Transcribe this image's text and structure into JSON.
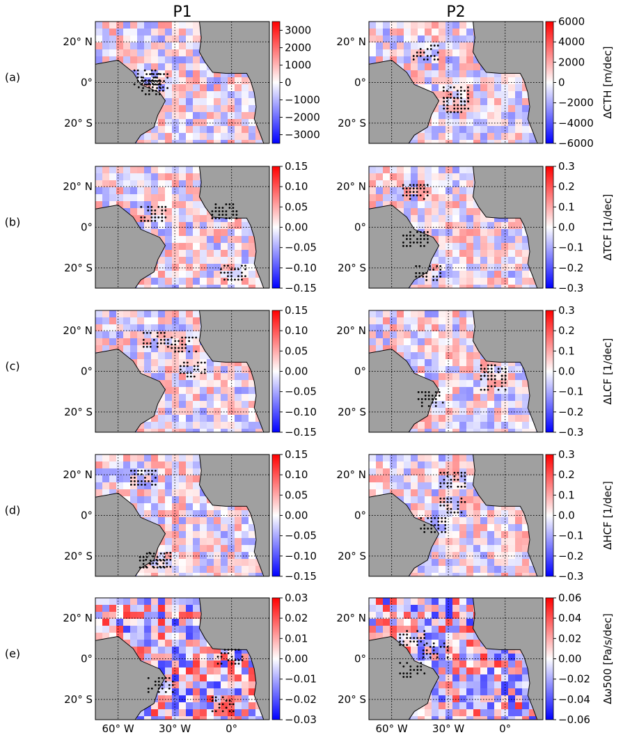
{
  "figure": {
    "column_titles": [
      "P1",
      "P2"
    ],
    "row_labels": [
      "(a)",
      "(b)",
      "(c)",
      "(d)",
      "(e)"
    ],
    "lat_tick_labels": [
      "20° N",
      "0°",
      "20° S"
    ],
    "lon_tick_labels": [
      "60° W",
      "30° W",
      "0°"
    ]
  },
  "chart_data": {
    "type": "heatmap",
    "description_of_rows": [
      "ΔCTH",
      "ΔTCF",
      "ΔLCF",
      "ΔHCF",
      "Δω500"
    ],
    "colormap": {
      "negative": "#0000ff",
      "zero": "#ffffff",
      "positive": "#ff0000"
    },
    "land_color": "#a0a0a0",
    "stipple_color": "#000000",
    "rows": [
      {
        "p1": {
          "range": [
            -3500,
            3500
          ],
          "ticks": [
            "3000",
            "2000",
            "1000",
            "0",
            "−1000",
            "−2000",
            "−3000"
          ],
          "tick_values": [
            3000,
            2000,
            1000,
            0,
            -1000,
            -2000,
            -3000
          ]
        },
        "p2": {
          "range": [
            -6000,
            6000
          ],
          "ticks": [
            "6000",
            "4000",
            "2000",
            "0",
            "−2000",
            "−4000",
            "−6000"
          ],
          "tick_values": [
            6000,
            4000,
            2000,
            0,
            -2000,
            -4000,
            -6000
          ]
        },
        "unit_label": "ΔCTH [m/dec]"
      },
      {
        "p1": {
          "range": [
            -0.15,
            0.15
          ],
          "ticks": [
            "0.15",
            "0.10",
            "0.05",
            "0.00",
            "−0.05",
            "−0.10",
            "−0.15"
          ],
          "tick_values": [
            0.15,
            0.1,
            0.05,
            0.0,
            -0.05,
            -0.1,
            -0.15
          ]
        },
        "p2": {
          "range": [
            -0.3,
            0.3
          ],
          "ticks": [
            "0.3",
            "0.2",
            "0.1",
            "0.0",
            "−0.1",
            "−0.2",
            "−0.3"
          ],
          "tick_values": [
            0.3,
            0.2,
            0.1,
            0.0,
            -0.1,
            -0.2,
            -0.3
          ]
        },
        "unit_label": "ΔTCF [1/dec]"
      },
      {
        "p1": {
          "range": [
            -0.15,
            0.15
          ],
          "ticks": [
            "0.15",
            "0.10",
            "0.05",
            "0.00",
            "−0.05",
            "−0.10",
            "−0.15"
          ],
          "tick_values": [
            0.15,
            0.1,
            0.05,
            0.0,
            -0.05,
            -0.1,
            -0.15
          ]
        },
        "p2": {
          "range": [
            -0.3,
            0.3
          ],
          "ticks": [
            "0.3",
            "0.2",
            "0.1",
            "0.0",
            "−0.1",
            "−0.2",
            "−0.3"
          ],
          "tick_values": [
            0.3,
            0.2,
            0.1,
            0.0,
            -0.1,
            -0.2,
            -0.3
          ]
        },
        "unit_label": "ΔLCF [1/dec]"
      },
      {
        "p1": {
          "range": [
            -0.15,
            0.15
          ],
          "ticks": [
            "0.15",
            "0.10",
            "0.05",
            "0.00",
            "−0.05",
            "−0.10",
            "−0.15"
          ],
          "tick_values": [
            0.15,
            0.1,
            0.05,
            0.0,
            -0.05,
            -0.1,
            -0.15
          ]
        },
        "p2": {
          "range": [
            -0.3,
            0.3
          ],
          "ticks": [
            "0.3",
            "0.2",
            "0.1",
            "0.0",
            "−0.1",
            "−0.2",
            "−0.3"
          ],
          "tick_values": [
            0.3,
            0.2,
            0.1,
            0.0,
            -0.1,
            -0.2,
            -0.3
          ]
        },
        "unit_label": "ΔHCF [1/dec]"
      },
      {
        "p1": {
          "range": [
            -0.03,
            0.03
          ],
          "ticks": [
            "0.03",
            "0.02",
            "0.01",
            "0.00",
            "−0.01",
            "−0.02",
            "−0.03"
          ],
          "tick_values": [
            0.03,
            0.02,
            0.01,
            0.0,
            -0.01,
            -0.02,
            -0.03
          ]
        },
        "p2": {
          "range": [
            -0.06,
            0.06
          ],
          "ticks": [
            "0.06",
            "0.04",
            "0.02",
            "0.00",
            "−0.02",
            "−0.04",
            "−0.06"
          ],
          "tick_values": [
            0.06,
            0.04,
            0.02,
            0.0,
            -0.02,
            -0.04,
            -0.06
          ]
        },
        "unit_label": "Δω500 [Pa/s/dec]"
      }
    ]
  }
}
